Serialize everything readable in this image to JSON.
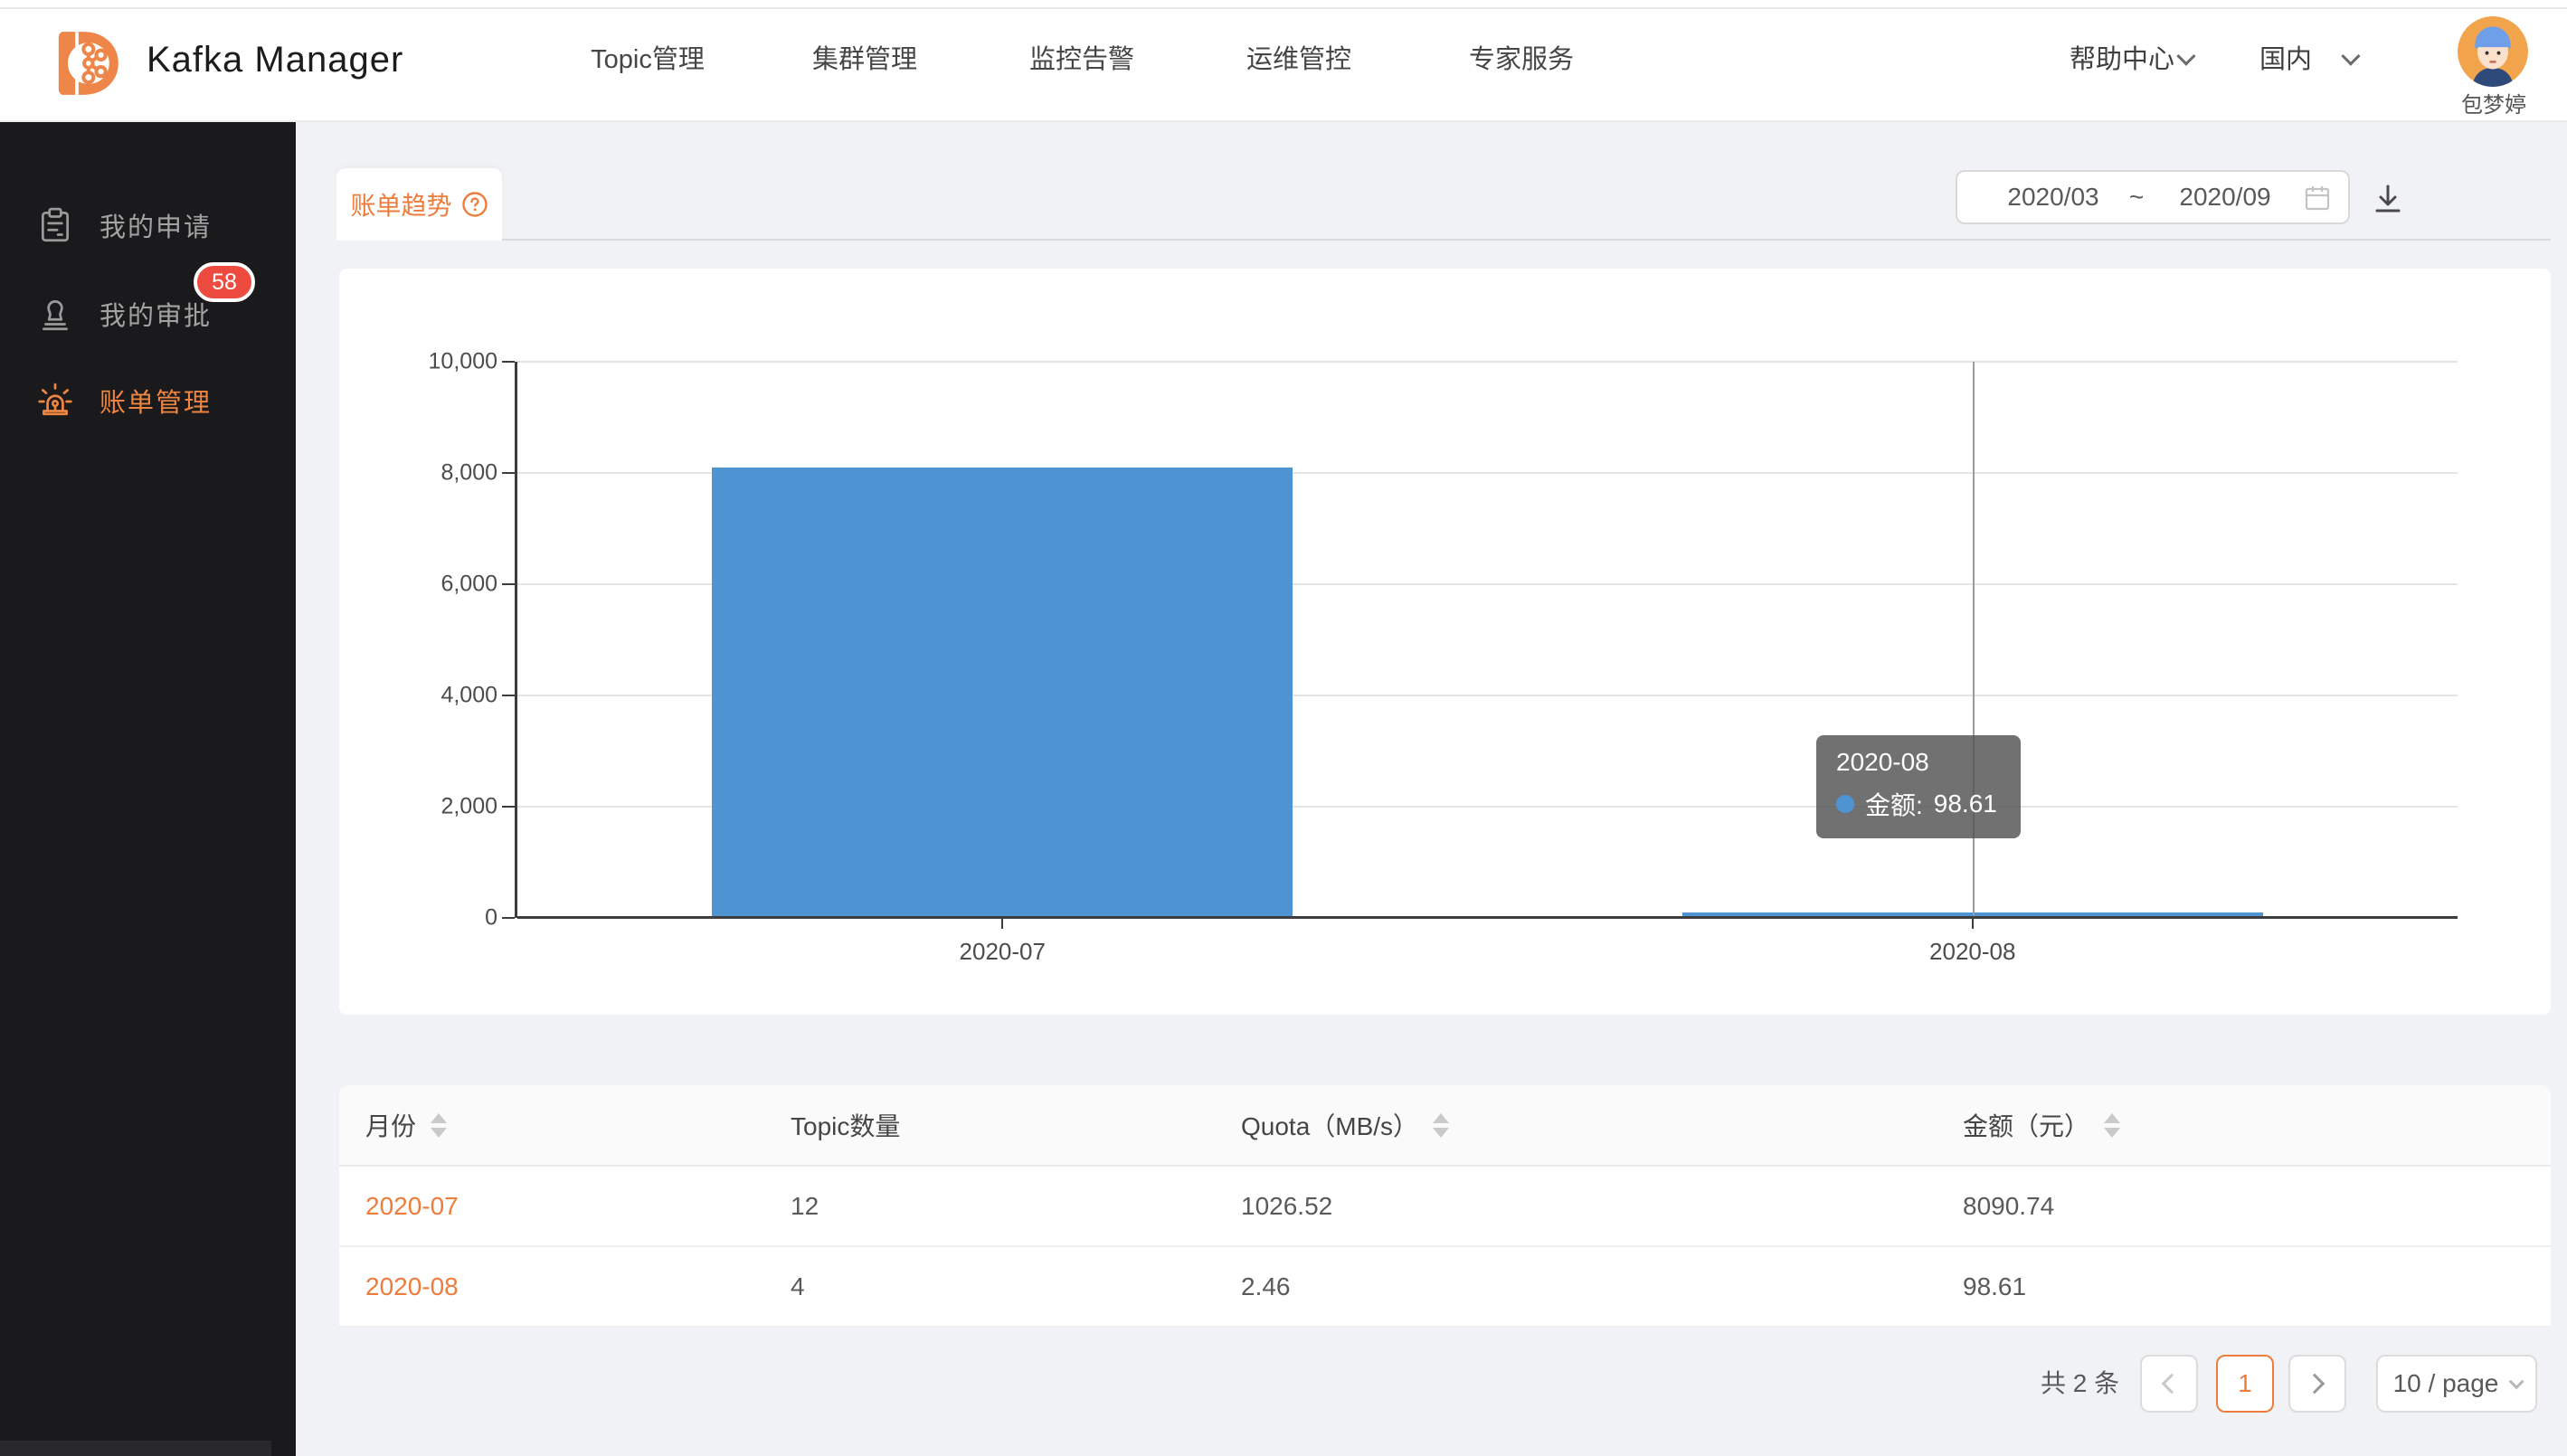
{
  "header": {
    "brand": "Kafka Manager",
    "nav": [
      "Topic管理",
      "集群管理",
      "监控告警",
      "运维管控",
      "专家服务"
    ],
    "help_label": "帮助中心",
    "region_label": "国内",
    "username": "包梦婷"
  },
  "sidebar": {
    "items": [
      {
        "label": "我的申请",
        "icon": "clipboard-icon"
      },
      {
        "label": "我的审批",
        "icon": "stamp-icon",
        "badge": "58"
      },
      {
        "label": "账单管理",
        "icon": "alarm-icon",
        "active": true
      }
    ]
  },
  "toolbar": {
    "tab_label": "账单趋势",
    "tab_help_icon": "help-circle-icon",
    "date_start": "2020/03",
    "date_separator": "~",
    "date_end": "2020/09",
    "calendar_icon": "calendar-icon",
    "download_icon": "download-icon"
  },
  "chart_data": {
    "type": "bar",
    "title": "",
    "categories": [
      "2020-07",
      "2020-08"
    ],
    "series": [
      {
        "name": "金额",
        "values": [
          8090.74,
          98.61
        ]
      }
    ],
    "xlabel": "",
    "ylabel": "",
    "ylim": [
      0,
      10000
    ],
    "yticks": [
      0,
      2000,
      4000,
      6000,
      8000,
      10000
    ],
    "ytick_labels": [
      "0",
      "2,000",
      "4,000",
      "6,000",
      "8,000",
      "10,000"
    ],
    "grid": true,
    "legend": "none",
    "bar_color": "#4f94d2",
    "tooltip": {
      "title": "2020-08",
      "label": "金额:",
      "value": "98.61"
    }
  },
  "table": {
    "columns": [
      {
        "label": "月份",
        "sortable": true
      },
      {
        "label": "Topic数量",
        "sortable": false
      },
      {
        "label": "Quota（MB/s）",
        "sortable": true
      },
      {
        "label": "金额（元）",
        "sortable": true
      }
    ],
    "rows": [
      {
        "month": "2020-07",
        "topics": "12",
        "quota": "1026.52",
        "amount": "8090.74"
      },
      {
        "month": "2020-08",
        "topics": "4",
        "quota": "2.46",
        "amount": "98.61"
      }
    ]
  },
  "pagination": {
    "total": "共 2 条",
    "current_page": "1",
    "page_size": "10 / page"
  },
  "colors": {
    "accent_orange": "#ee7c3c",
    "bar_blue": "#4f94d2",
    "badge_red": "#ee4b40",
    "sidebar_bg": "#1a1a1c",
    "page_bg": "#f1f2f5"
  }
}
